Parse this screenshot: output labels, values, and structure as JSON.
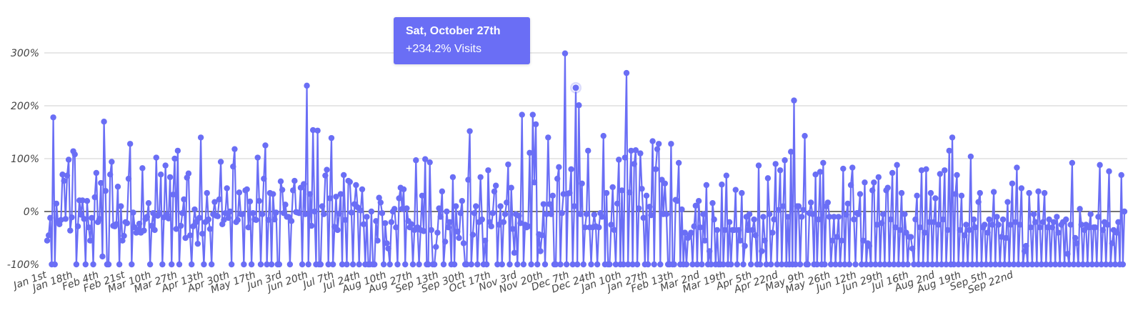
{
  "tooltip": {
    "title": "Sat, October 27th",
    "value": "+234.2% Visits"
  },
  "colors": {
    "series": "#6a6ef5",
    "grid": "#cfcfcf",
    "zero_line": "#222222",
    "tick_text": "#444444",
    "tooltip_bg": "#6a6ef5"
  },
  "chart_data": {
    "type": "line",
    "title": "",
    "xlabel": "",
    "ylabel": "",
    "series": [
      {
        "values": []
      }
    ],
    "ylim": [
      -100,
      300
    ],
    "yticks": [
      {
        "value": 300,
        "label": "300%"
      },
      {
        "value": 200,
        "label": "200%"
      },
      {
        "value": 100,
        "label": "100%"
      },
      {
        "value": 0,
        "label": "0%"
      },
      {
        "value": -100,
        "label": "-100%"
      }
    ],
    "xticks": [
      "Jan 1st",
      "Jan 18th",
      "Feb 4th",
      "Feb 21st",
      "Mar 10th",
      "Mar 27th",
      "Apr 13th",
      "Apr 30th",
      "May 17th",
      "Jun 3rd",
      "Jun 20th",
      "Jul 7th",
      "Jul 24th",
      "Aug 10th",
      "Aug 27th",
      "Sep 13th",
      "Sep 30th",
      "Oct 17th",
      "Nov 3rd",
      "Nov 20th",
      "Dec 7th",
      "Dec 24th",
      "Jan 10th",
      "Jan 27th",
      "Feb 13th",
      "Mar 2nd",
      "Mar 19th",
      "Apr 5th",
      "Apr 22nd",
      "May 9th",
      "May 26th",
      "Jun 12th",
      "Jun 29th",
      "Jul 16th",
      "Aug 2nd",
      "Aug 19th",
      "Sep 5th",
      "Sep 22nd"
    ],
    "days_per_tick": 17,
    "highlight": {
      "date": "Sat, October 27th",
      "value": 234.2
    },
    "grid": true,
    "legend": "none",
    "values": [
      -55,
      -45,
      -12,
      -100,
      178,
      -100,
      15,
      -18,
      -24,
      -16,
      70,
      58,
      -14,
      68,
      98,
      -36,
      -11,
      114,
      108,
      -100,
      -28,
      21,
      -6,
      21,
      -14,
      -100,
      20,
      -30,
      -55,
      -12,
      -100,
      27,
      73,
      -20,
      -14,
      54,
      -85,
      170,
      39,
      -100,
      -100,
      70,
      94,
      -27,
      -28,
      -24,
      47,
      -100,
      10,
      -55,
      -46,
      -20,
      -22,
      62,
      128,
      -100,
      -2,
      -30,
      -40,
      -35,
      -23,
      -40,
      82,
      -36,
      -14,
      -10,
      16,
      -100,
      -27,
      -3,
      -35,
      102,
      -8,
      -3,
      70,
      -100,
      -11,
      87,
      -6,
      -13,
      65,
      -100,
      32,
      100,
      -33,
      115,
      -100,
      -27,
      -3,
      23,
      -50,
      64,
      72,
      -45,
      -100,
      -28,
      4,
      -20,
      -61,
      -12,
      140,
      -42,
      -100,
      -20,
      35,
      -15,
      -33,
      -100,
      -5,
      18,
      -8,
      -9,
      23,
      94,
      -24,
      -16,
      -3,
      44,
      -12,
      0,
      -100,
      85,
      118,
      -20,
      -16,
      36,
      -5,
      -5,
      -100,
      40,
      42,
      -30,
      19,
      -100,
      -3,
      -15,
      -16,
      102,
      20,
      -100,
      -5,
      62,
      125,
      -100,
      -16,
      35,
      -100,
      33,
      -15,
      -2,
      -100,
      -100,
      57,
      41,
      -3,
      13,
      -10,
      -10,
      -100,
      -18,
      40,
      58,
      -1,
      -2,
      -3,
      45,
      -100,
      52,
      -5,
      238,
      -100,
      33,
      -27,
      154,
      0,
      -100,
      153,
      -100,
      -100,
      10,
      -5,
      68,
      79,
      -100,
      25,
      139,
      -100,
      -29,
      28,
      -35,
      -4,
      33,
      -100,
      69,
      -16,
      -100,
      58,
      56,
      -2,
      -100,
      14,
      50,
      8,
      -100,
      2,
      42,
      -24,
      -100,
      -10,
      -100,
      -100,
      0,
      -100,
      -100,
      -18,
      -55,
      26,
      17,
      -3,
      -100,
      -22,
      -60,
      -70,
      -100,
      -20,
      0,
      5,
      -30,
      -100,
      25,
      45,
      5,
      42,
      -100,
      6,
      -18,
      -30,
      -24,
      -100,
      -35,
      97,
      -30,
      -100,
      -35,
      30,
      -37,
      99,
      -100,
      -100,
      93,
      -35,
      -100,
      -100,
      -67,
      -40,
      6,
      -10,
      38,
      -100,
      -57,
      0,
      -30,
      -20,
      -100,
      65,
      -100,
      10,
      -38,
      -50,
      -3,
      20,
      -60,
      -100,
      -100,
      60,
      152,
      -100,
      -44,
      -3,
      10,
      -100,
      -20,
      65,
      -15,
      -100,
      -55,
      -100,
      78,
      -20,
      -28,
      -3,
      38,
      49,
      -100,
      -25,
      10,
      -100,
      -20,
      -5,
      17,
      89,
      -100,
      45,
      -33,
      -78,
      -5,
      -100,
      -8,
      -22,
      183,
      -100,
      -25,
      -30,
      -28,
      111,
      -100,
      183,
      55,
      165,
      -100,
      -43,
      -75,
      -45,
      14,
      -100,
      -5,
      140,
      14,
      -5,
      30,
      -100,
      -100,
      62,
      84,
      -100,
      -3,
      33,
      299,
      -100,
      34,
      35,
      80,
      -100,
      10,
      234,
      -100,
      201,
      -5,
      53,
      -100,
      -30,
      -5,
      115,
      -30,
      -100,
      -30,
      -6,
      -28,
      -100,
      -30,
      -3,
      -10,
      143,
      -100,
      35,
      -100,
      -100,
      -25,
      46,
      -35,
      -100,
      15,
      98,
      -100,
      40,
      -100,
      102,
      262,
      -100,
      36,
      115,
      -100,
      90,
      116,
      -100,
      6,
      110,
      43,
      -12,
      -100,
      30,
      -100,
      9,
      -7,
      133,
      -100,
      80,
      118,
      128,
      -100,
      60,
      -5,
      53,
      -5,
      -100,
      -100,
      128,
      -100,
      -100,
      22,
      20,
      92,
      -100,
      4,
      -100,
      -40,
      -100,
      -50,
      -45,
      -40,
      -100,
      -28,
      11,
      -100,
      20,
      -30,
      -100,
      -5,
      -55,
      50,
      -100,
      -75,
      -100,
      16,
      -15,
      -100,
      -35,
      -100,
      -100,
      51,
      -100,
      -35,
      68,
      -100,
      -20,
      -100,
      -35,
      -35,
      41,
      -100,
      -35,
      -55,
      35,
      -100,
      -65,
      -10,
      -35,
      -5,
      -100,
      -35,
      -15,
      -45,
      -100,
      87,
      -100,
      -75,
      -10,
      -55,
      -100,
      63,
      -5,
      -100,
      -40,
      -15,
      90,
      -100,
      3,
      78,
      -100,
      10,
      97,
      -100,
      -10,
      -100,
      113,
      -100,
      210,
      -100,
      10,
      10,
      -100,
      -10,
      3,
      143,
      -100,
      -100,
      -3,
      17,
      -5,
      -100,
      70,
      -100,
      -15,
      75,
      -100,
      92,
      -100,
      10,
      17,
      -10,
      -100,
      -55,
      -10,
      -100,
      -48,
      -10,
      -100,
      -55,
      81,
      -100,
      -6,
      15,
      -100,
      50,
      83,
      -15,
      -100,
      -3,
      -5,
      33,
      -100,
      -55,
      55,
      -100,
      -60,
      -65,
      -100,
      40,
      55,
      -100,
      -25,
      65,
      -100,
      -22,
      -5,
      -100,
      40,
      45,
      -100,
      -15,
      73,
      -100,
      -30,
      88,
      -100,
      -35,
      35,
      -100,
      -5,
      -40,
      -100,
      -48,
      -48,
      -70,
      -100,
      -15,
      30,
      -100,
      -30,
      78,
      -100,
      -40,
      80,
      -100,
      -20,
      35,
      -100,
      -20,
      25,
      -100,
      -25,
      71,
      -100,
      -15,
      78,
      -100,
      -35,
      115,
      -100,
      140,
      -100,
      33,
      69,
      -100,
      -35,
      30,
      -100,
      -45,
      -25,
      -100,
      -35,
      104,
      -100,
      -15,
      -30,
      -100,
      18,
      35,
      -100,
      -30,
      -25,
      -100,
      -40,
      -15,
      -100,
      -25,
      37,
      -100,
      -10,
      -25,
      -100,
      -48,
      -15,
      -100,
      -50,
      18,
      -100,
      -25,
      53,
      -100,
      -20,
      83,
      -100,
      -25,
      44,
      -100,
      -75,
      -65,
      -100,
      35,
      -30,
      -100,
      -5,
      -20,
      -100,
      38,
      -30,
      -100,
      -20,
      35,
      -100,
      -30,
      -15,
      -100,
      -30,
      -20,
      -100,
      -10,
      -40,
      -100,
      -25,
      -20,
      -100,
      -15,
      -80,
      -100,
      -25,
      92,
      -100,
      -50,
      -60,
      -100,
      5,
      -25,
      -100,
      -35,
      -25,
      -100,
      -30,
      -5,
      -100,
      -30,
      -30,
      -100,
      -10,
      88,
      -100,
      -35,
      -20,
      -100,
      -25,
      76,
      -100,
      -60,
      -35,
      -100,
      -40,
      -20,
      -100,
      69,
      -100,
      0
    ]
  }
}
